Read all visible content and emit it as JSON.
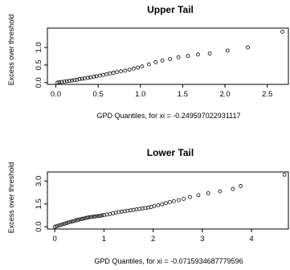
{
  "chart_data": [
    {
      "type": "scatter",
      "title": "Upper Tail",
      "xlabel": "GPD Quantiles, for xi =  -0.249597022931117",
      "ylabel": "Excess over threshold",
      "xlim": [
        -0.1,
        2.75
      ],
      "ylim": [
        -0.05,
        1.55
      ],
      "xticks": [
        0.0,
        0.5,
        1.0,
        1.5,
        2.0,
        2.5
      ],
      "xtick_labels": [
        "0.0",
        "0.5",
        "1.0",
        "1.5",
        "2.0",
        "2.5"
      ],
      "yticks": [
        0.0,
        0.5,
        1.0
      ],
      "ytick_labels": [
        "0.0",
        "0.5",
        "1.0"
      ],
      "grid": false,
      "points": [
        [
          0.02,
          0.0
        ],
        [
          0.04,
          0.01
        ],
        [
          0.07,
          0.02
        ],
        [
          0.1,
          0.03
        ],
        [
          0.13,
          0.04
        ],
        [
          0.16,
          0.05
        ],
        [
          0.19,
          0.06
        ],
        [
          0.22,
          0.07
        ],
        [
          0.25,
          0.08
        ],
        [
          0.28,
          0.1
        ],
        [
          0.31,
          0.11
        ],
        [
          0.34,
          0.12
        ],
        [
          0.38,
          0.14
        ],
        [
          0.41,
          0.15
        ],
        [
          0.45,
          0.17
        ],
        [
          0.48,
          0.18
        ],
        [
          0.52,
          0.2
        ],
        [
          0.56,
          0.22
        ],
        [
          0.6,
          0.24
        ],
        [
          0.64,
          0.26
        ],
        [
          0.68,
          0.28
        ],
        [
          0.72,
          0.3
        ],
        [
          0.77,
          0.32
        ],
        [
          0.82,
          0.34
        ],
        [
          0.87,
          0.37
        ],
        [
          0.92,
          0.4
        ],
        [
          0.97,
          0.43
        ],
        [
          1.02,
          0.46
        ],
        [
          1.1,
          0.52
        ],
        [
          1.18,
          0.58
        ],
        [
          1.26,
          0.63
        ],
        [
          1.35,
          0.67
        ],
        [
          1.45,
          0.72
        ],
        [
          1.56,
          0.76
        ],
        [
          1.68,
          0.8
        ],
        [
          1.82,
          0.83
        ],
        [
          2.03,
          0.91
        ],
        [
          2.27,
          1.0
        ],
        [
          2.68,
          1.45
        ]
      ]
    },
    {
      "type": "scatter",
      "title": "Lower Tail",
      "xlabel": "GPD Quantiles, for xi =  -0.0715934687779596",
      "ylabel": "Excess over threshold",
      "xlim": [
        -0.15,
        4.75
      ],
      "ylim": [
        -0.15,
        3.6
      ],
      "xticks": [
        0,
        1,
        2,
        3,
        4
      ],
      "xtick_labels": [
        "0",
        "1",
        "2",
        "3",
        "4"
      ],
      "yticks": [
        0.0,
        1.5,
        3.0
      ],
      "ytick_labels": [
        "0.0",
        "1.5",
        "3.0"
      ],
      "grid": false,
      "points": [
        [
          0.0,
          0.0
        ],
        [
          0.04,
          0.04
        ],
        [
          0.08,
          0.08
        ],
        [
          0.12,
          0.12
        ],
        [
          0.16,
          0.16
        ],
        [
          0.2,
          0.2
        ],
        [
          0.24,
          0.24
        ],
        [
          0.28,
          0.28
        ],
        [
          0.32,
          0.32
        ],
        [
          0.36,
          0.35
        ],
        [
          0.4,
          0.39
        ],
        [
          0.44,
          0.42
        ],
        [
          0.48,
          0.46
        ],
        [
          0.52,
          0.49
        ],
        [
          0.56,
          0.52
        ],
        [
          0.6,
          0.55
        ],
        [
          0.64,
          0.58
        ],
        [
          0.68,
          0.61
        ],
        [
          0.72,
          0.63
        ],
        [
          0.76,
          0.65
        ],
        [
          0.8,
          0.67
        ],
        [
          0.84,
          0.69
        ],
        [
          0.88,
          0.7
        ],
        [
          0.92,
          0.72
        ],
        [
          0.96,
          0.74
        ],
        [
          1.0,
          0.77
        ],
        [
          1.06,
          0.8
        ],
        [
          1.12,
          0.84
        ],
        [
          1.18,
          0.88
        ],
        [
          1.24,
          0.92
        ],
        [
          1.3,
          0.96
        ],
        [
          1.36,
          0.99
        ],
        [
          1.42,
          1.02
        ],
        [
          1.48,
          1.05
        ],
        [
          1.54,
          1.08
        ],
        [
          1.6,
          1.11
        ],
        [
          1.66,
          1.14
        ],
        [
          1.72,
          1.17
        ],
        [
          1.78,
          1.2
        ],
        [
          1.84,
          1.23
        ],
        [
          1.9,
          1.26
        ],
        [
          1.96,
          1.3
        ],
        [
          2.02,
          1.35
        ],
        [
          2.1,
          1.42
        ],
        [
          2.18,
          1.48
        ],
        [
          2.26,
          1.55
        ],
        [
          2.34,
          1.62
        ],
        [
          2.42,
          1.68
        ],
        [
          2.52,
          1.75
        ],
        [
          2.62,
          1.83
        ],
        [
          2.75,
          1.95
        ],
        [
          2.92,
          2.08
        ],
        [
          3.12,
          2.2
        ],
        [
          3.36,
          2.32
        ],
        [
          3.62,
          2.48
        ],
        [
          3.78,
          2.68
        ],
        [
          4.67,
          3.42
        ]
      ]
    }
  ]
}
